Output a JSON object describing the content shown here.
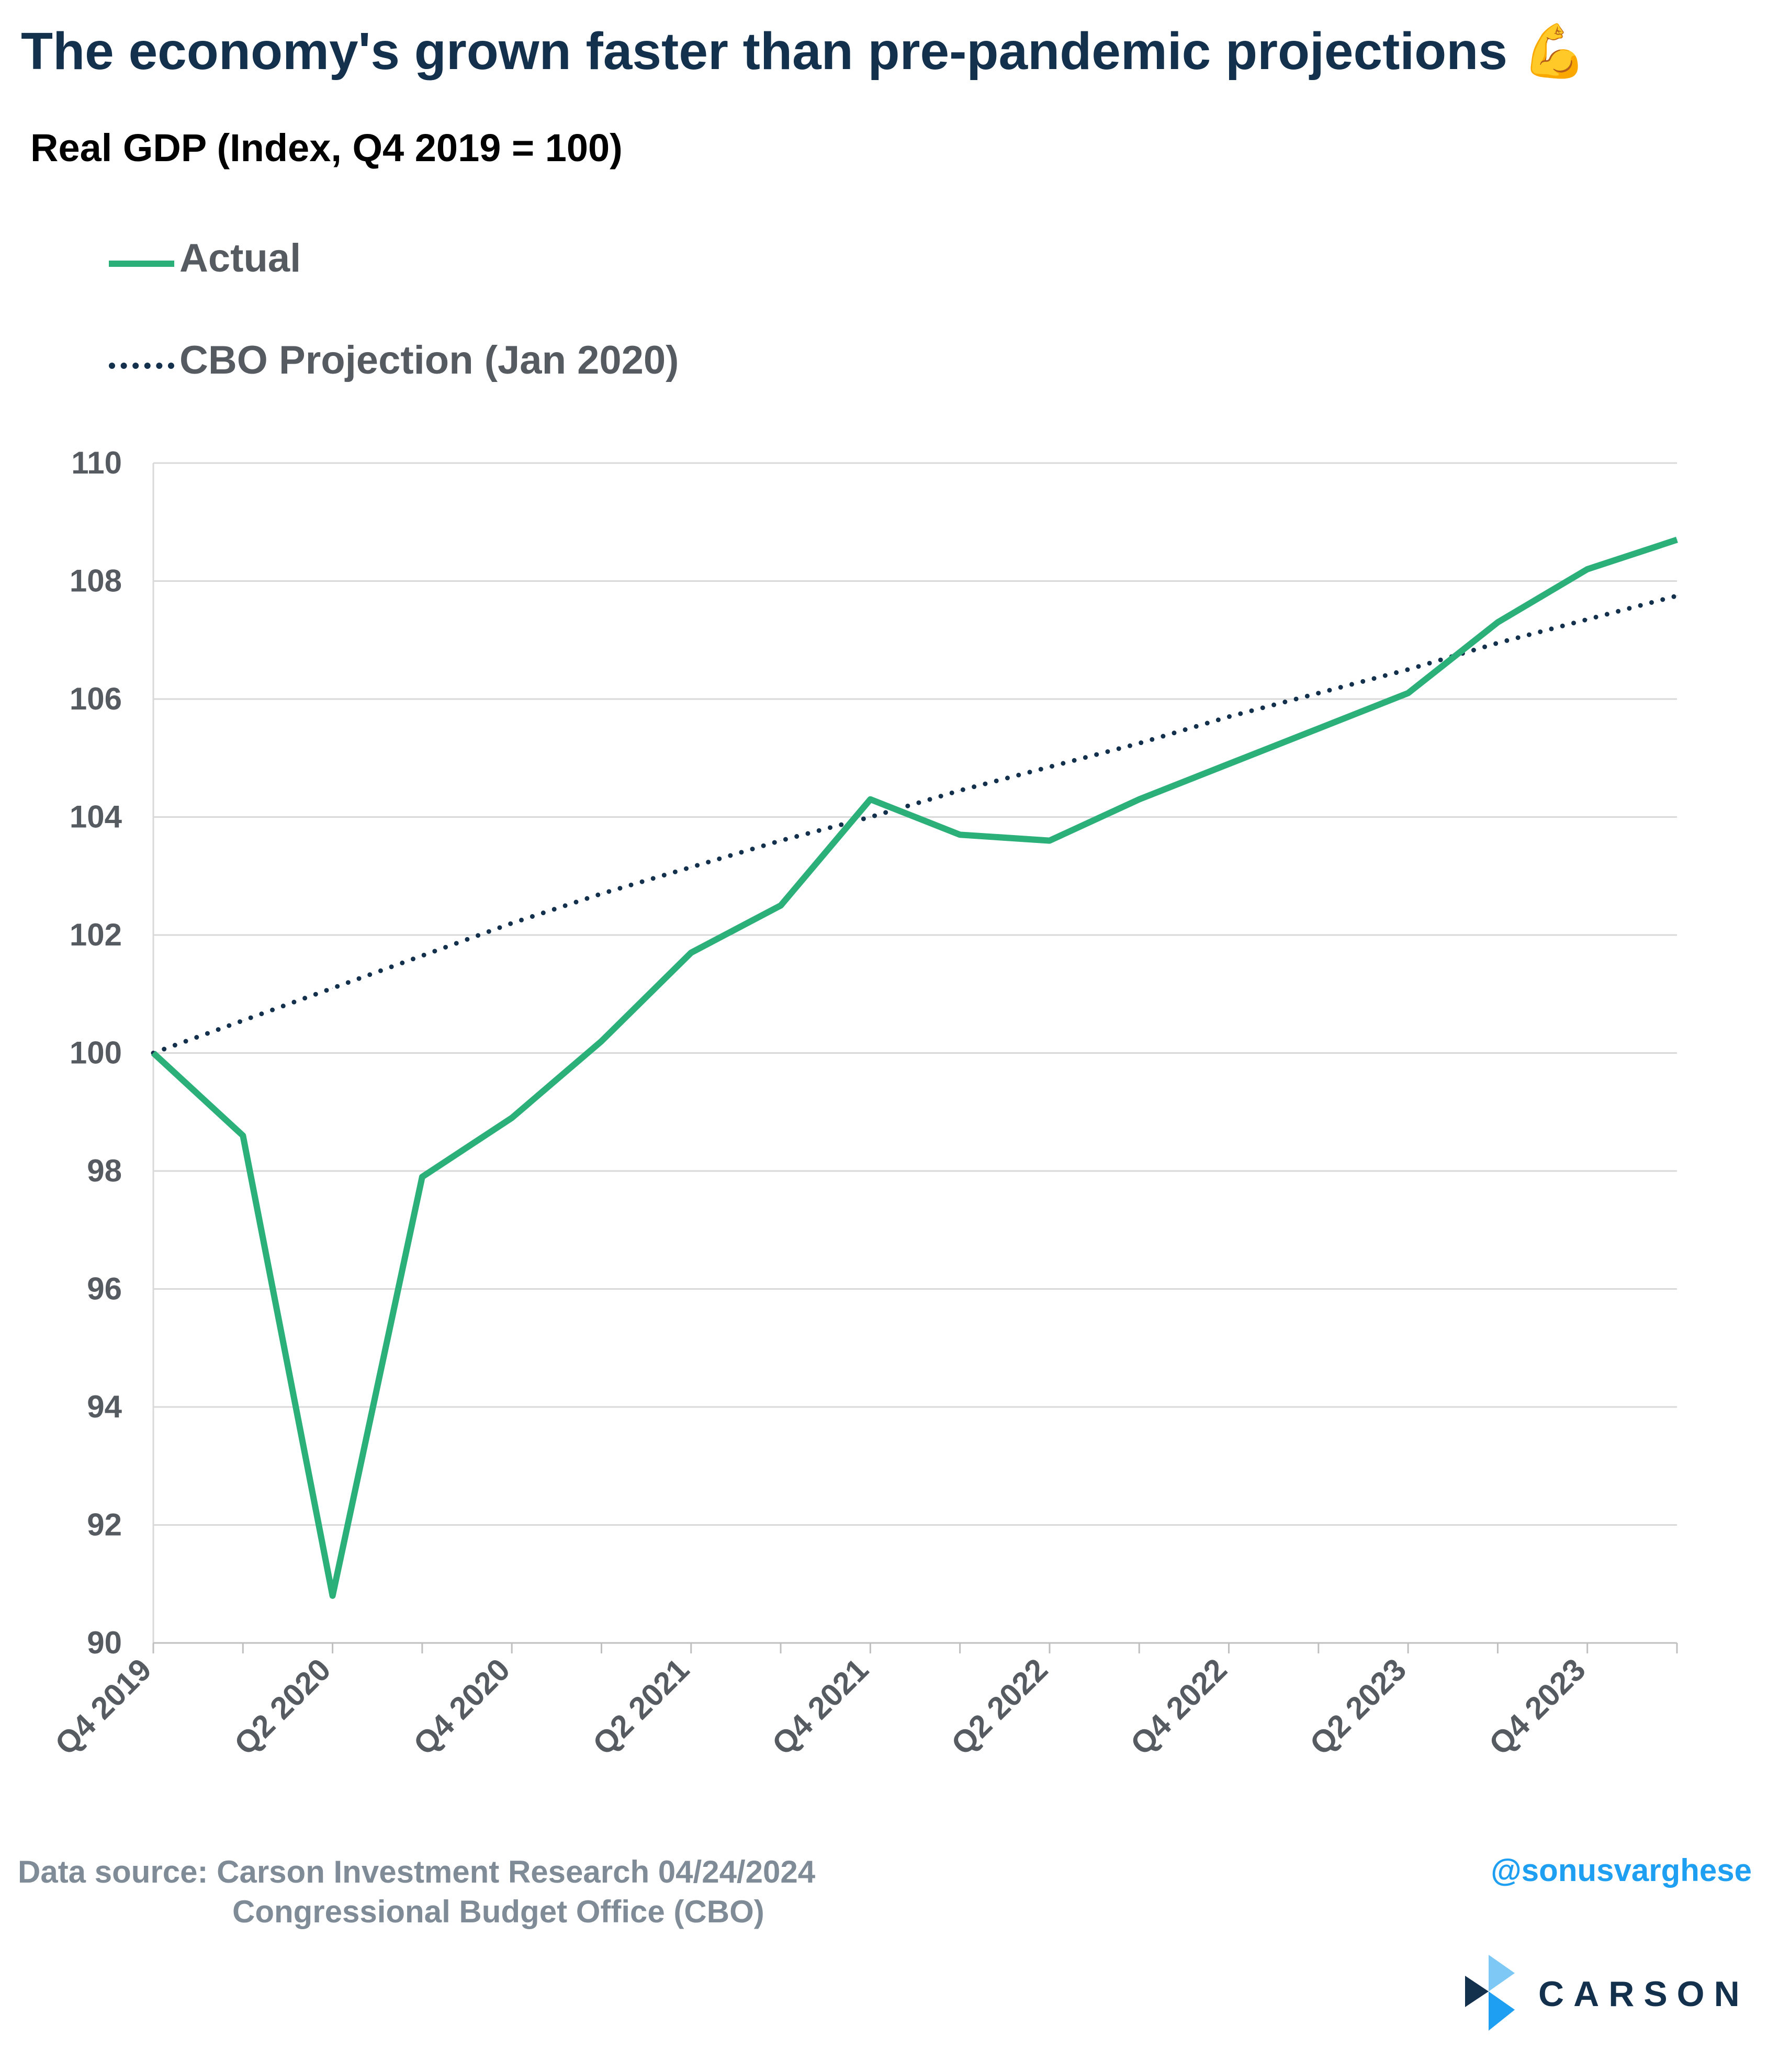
{
  "header": {
    "title": "The economy's grown faster than pre-pandemic projections",
    "title_emoji": "💪",
    "subtitle": "Real GDP (Index, Q4 2019 = 100)"
  },
  "legend": [
    {
      "label": "Actual",
      "style": "solid",
      "color": "#2bb07a"
    },
    {
      "label": "CBO Projection (Jan 2020)",
      "style": "dotted",
      "color": "#13304d"
    }
  ],
  "chart_data": {
    "type": "line",
    "x": [
      "Q4 2019",
      "Q1 2020",
      "Q2 2020",
      "Q3 2020",
      "Q4 2020",
      "Q1 2021",
      "Q2 2021",
      "Q3 2021",
      "Q4 2021",
      "Q1 2022",
      "Q2 2022",
      "Q3 2022",
      "Q4 2022",
      "Q1 2023",
      "Q2 2023",
      "Q3 2023",
      "Q4 2023",
      "Q1 2024"
    ],
    "x_tick_labels": [
      "Q4 2019",
      "Q2 2020",
      "Q4 2020",
      "Q2 2021",
      "Q4 2021",
      "Q2 2022",
      "Q4 2022",
      "Q2 2023",
      "Q4 2023"
    ],
    "series": [
      {
        "name": "Actual",
        "style": "solid",
        "color": "#2bb07a",
        "values": [
          100.0,
          98.6,
          90.8,
          97.9,
          98.9,
          100.2,
          101.7,
          102.5,
          104.3,
          103.7,
          103.6,
          104.3,
          104.9,
          105.5,
          106.1,
          107.3,
          108.2,
          108.7
        ]
      },
      {
        "name": "CBO Projection (Jan 2020)",
        "style": "dotted",
        "color": "#13304d",
        "values": [
          100.0,
          100.55,
          101.1,
          101.65,
          102.2,
          102.7,
          103.15,
          103.6,
          104.0,
          104.45,
          104.85,
          105.25,
          105.7,
          106.1,
          106.5,
          106.95,
          107.35,
          107.75
        ]
      }
    ],
    "ylim": [
      90,
      110
    ],
    "y_ticks": [
      90,
      92,
      94,
      96,
      98,
      100,
      102,
      104,
      106,
      108,
      110
    ],
    "grid": true,
    "legend_position": "top-left"
  },
  "footer": {
    "source_line1": "Data source: Carson Investment Research   04/24/2024",
    "source_line2": "Congressional Budget Office (CBO)",
    "handle": "@sonusvarghese",
    "brand": "CARSON"
  }
}
